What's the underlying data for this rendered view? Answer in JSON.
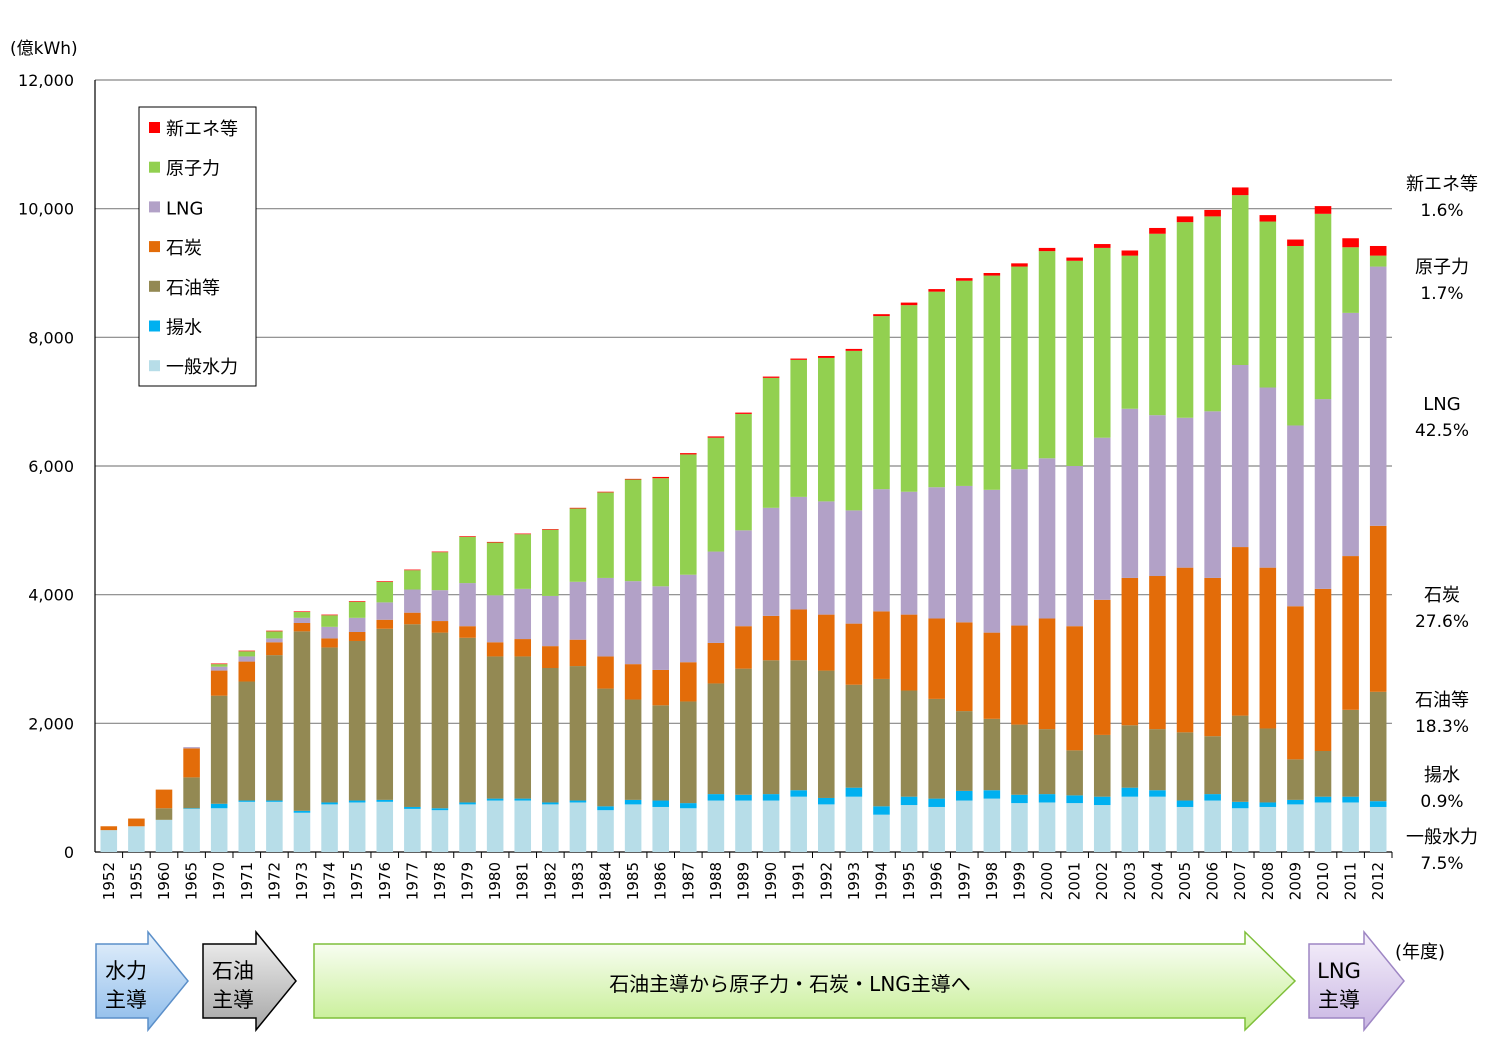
{
  "chart_data": {
    "type": "bar",
    "stacked": true,
    "ylabel": "(億kWh)",
    "xlabel": "(年度)",
    "ylim": [
      0,
      12000
    ],
    "yticks": [
      "0",
      "2,000",
      "4,000",
      "6,000",
      "8,000",
      "10,000",
      "12,000"
    ],
    "ytick_values": [
      0,
      2000,
      4000,
      6000,
      8000,
      10000,
      12000
    ],
    "grid": true,
    "legend_position": "top-left",
    "categories": [
      "1952",
      "1955",
      "1960",
      "1965",
      "1970",
      "1971",
      "1972",
      "1973",
      "1974",
      "1975",
      "1976",
      "1977",
      "1978",
      "1979",
      "1980",
      "1981",
      "1982",
      "1983",
      "1984",
      "1985",
      "1986",
      "1987",
      "1988",
      "1989",
      "1990",
      "1991",
      "1992",
      "1993",
      "1994",
      "1995",
      "1996",
      "1997",
      "1998",
      "1999",
      "2000",
      "2001",
      "2002",
      "2003",
      "2004",
      "2005",
      "2006",
      "2007",
      "2008",
      "2009",
      "2010",
      "2011",
      "2012"
    ],
    "series": [
      {
        "name": "一般水力",
        "color": "#b7dde8",
        "values": [
          340,
          400,
          500,
          670,
          680,
          780,
          780,
          610,
          740,
          770,
          780,
          670,
          650,
          740,
          800,
          800,
          740,
          770,
          650,
          740,
          700,
          680,
          800,
          800,
          800,
          860,
          740,
          860,
          580,
          730,
          700,
          800,
          830,
          760,
          770,
          760,
          730,
          860,
          860,
          700,
          800,
          680,
          700,
          740,
          770,
          770,
          700
        ]
      },
      {
        "name": "揚水",
        "color": "#00b0f0",
        "values": [
          0,
          0,
          0,
          10,
          70,
          20,
          20,
          30,
          30,
          30,
          30,
          30,
          30,
          30,
          30,
          30,
          30,
          30,
          60,
          70,
          100,
          80,
          100,
          90,
          100,
          100,
          100,
          140,
          130,
          130,
          130,
          150,
          130,
          130,
          130,
          120,
          130,
          140,
          100,
          100,
          100,
          100,
          70,
          70,
          90,
          90,
          90
        ]
      },
      {
        "name": "石油等",
        "color": "#938953",
        "values": [
          0,
          0,
          180,
          480,
          1680,
          1850,
          2260,
          2790,
          2410,
          2480,
          2660,
          2840,
          2730,
          2560,
          2210,
          2210,
          2090,
          2090,
          1830,
          1560,
          1480,
          1580,
          1720,
          1960,
          2080,
          2020,
          1980,
          1600,
          1980,
          1650,
          1550,
          1240,
          1110,
          1090,
          1010,
          700,
          960,
          970,
          950,
          1060,
          900,
          1340,
          1150,
          630,
          710,
          1350,
          1700
        ]
      },
      {
        "name": "石炭",
        "color": "#e36c09",
        "values": [
          60,
          120,
          290,
          450,
          390,
          310,
          200,
          130,
          140,
          140,
          140,
          180,
          180,
          180,
          220,
          270,
          340,
          410,
          500,
          550,
          550,
          610,
          630,
          660,
          690,
          790,
          870,
          950,
          1050,
          1180,
          1250,
          1380,
          1340,
          1540,
          1720,
          1930,
          2100,
          2290,
          2380,
          2560,
          2460,
          2620,
          2500,
          2380,
          2520,
          2390,
          2580
        ]
      },
      {
        "name": "LNG",
        "color": "#b2a1c7",
        "values": [
          0,
          0,
          0,
          20,
          60,
          80,
          60,
          80,
          180,
          220,
          270,
          360,
          480,
          670,
          730,
          780,
          780,
          900,
          1220,
          1290,
          1300,
          1360,
          1420,
          1490,
          1680,
          1750,
          1760,
          1760,
          1900,
          1910,
          2040,
          2120,
          2220,
          2430,
          2490,
          2490,
          2520,
          2630,
          2500,
          2330,
          2590,
          2830,
          2800,
          2810,
          2950,
          3780,
          4030
        ]
      },
      {
        "name": "原子力",
        "color": "#92d050",
        "values": [
          0,
          0,
          0,
          0,
          40,
          80,
          110,
          90,
          180,
          250,
          320,
          300,
          590,
          720,
          820,
          850,
          1030,
          1140,
          1330,
          1580,
          1680,
          1870,
          1770,
          1810,
          2020,
          2130,
          2230,
          2480,
          2690,
          2900,
          3040,
          3190,
          3330,
          3150,
          3220,
          3190,
          2950,
          2380,
          2820,
          3040,
          3030,
          2640,
          2580,
          2790,
          2880,
          1020,
          170
        ]
      },
      {
        "name": "新エネ等",
        "color": "#ff0000",
        "values": [
          0,
          0,
          0,
          0,
          10,
          10,
          10,
          10,
          10,
          10,
          10,
          10,
          10,
          10,
          10,
          10,
          10,
          10,
          10,
          10,
          20,
          20,
          20,
          20,
          20,
          20,
          30,
          30,
          30,
          40,
          40,
          40,
          40,
          50,
          50,
          50,
          60,
          80,
          90,
          90,
          100,
          120,
          100,
          100,
          120,
          140,
          150
        ]
      }
    ],
    "right_labels": [
      {
        "name": "新エネ等",
        "pct": "1.6%"
      },
      {
        "name": "原子力",
        "pct": "1.7%"
      },
      {
        "name": "LNG",
        "pct": "42.5%"
      },
      {
        "name": "石炭",
        "pct": "27.6%"
      },
      {
        "name": "石油等",
        "pct": "18.3%"
      },
      {
        "name": "揚水",
        "pct": "0.9%"
      },
      {
        "name": "一般水力",
        "pct": "7.5%"
      }
    ],
    "phases": [
      {
        "line1": "水力",
        "line2": "主導",
        "colors": [
          "#e6f1fc",
          "#8cbbea"
        ],
        "stroke": "#5b8fc9"
      },
      {
        "line1": "石油",
        "line2": "主導",
        "colors": [
          "#f2f2f2",
          "#a6a6a6"
        ],
        "stroke": "#000000"
      },
      {
        "line1": "石油主導から原子力・石炭・LNG主導へ",
        "line2": "",
        "colors": [
          "#ffffff",
          "#c4ee8f"
        ],
        "stroke": "#7fbf3a"
      },
      {
        "line1": "LNG",
        "line2": "主導",
        "colors": [
          "#f6f1fb",
          "#c9b6e3"
        ],
        "stroke": "#9e86c4"
      }
    ]
  }
}
